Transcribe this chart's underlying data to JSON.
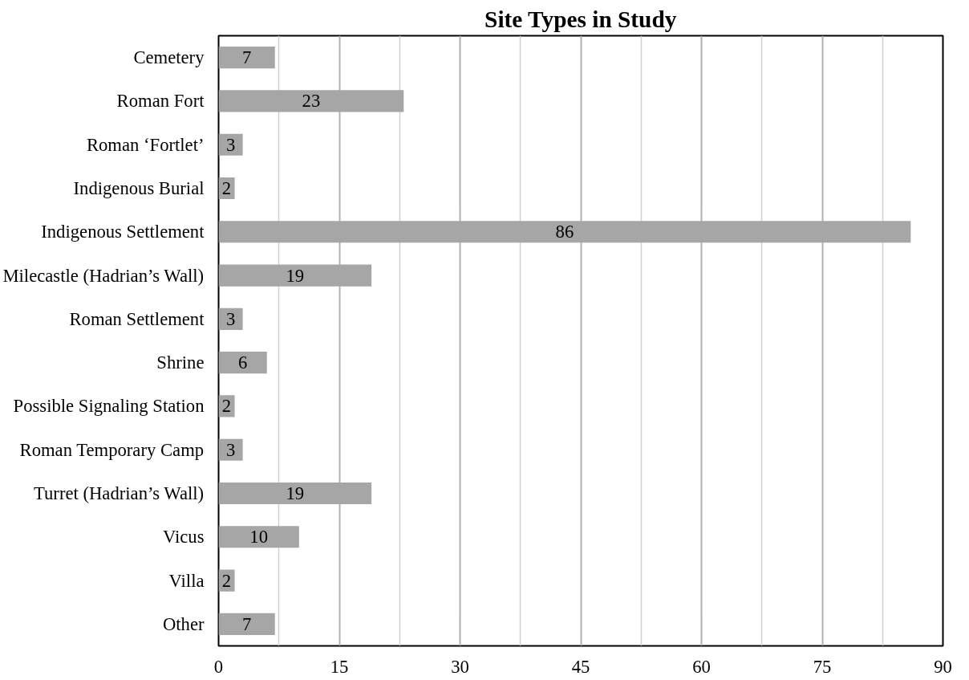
{
  "chart_data": {
    "type": "bar",
    "orientation": "horizontal",
    "title": "Site Types in Study",
    "categories": [
      "Cemetery",
      "Roman Fort",
      "Roman ‘Fortlet’",
      "Indigenous Burial",
      "Indigenous Settlement",
      "Milecastle (Hadrian’s Wall)",
      "Roman Settlement",
      "Shrine",
      "Possible Signaling Station",
      "Roman Temporary Camp",
      "Turret (Hadrian’s Wall)",
      "Vicus",
      "Villa",
      "Other"
    ],
    "values": [
      7,
      23,
      3,
      2,
      86,
      19,
      3,
      6,
      2,
      3,
      19,
      10,
      2,
      7
    ],
    "color": "#a6a6a6",
    "data_labels": true,
    "grid": "x",
    "xlim": [
      0,
      90
    ],
    "xticks": [
      0,
      15,
      30,
      45,
      60,
      75,
      90
    ]
  }
}
